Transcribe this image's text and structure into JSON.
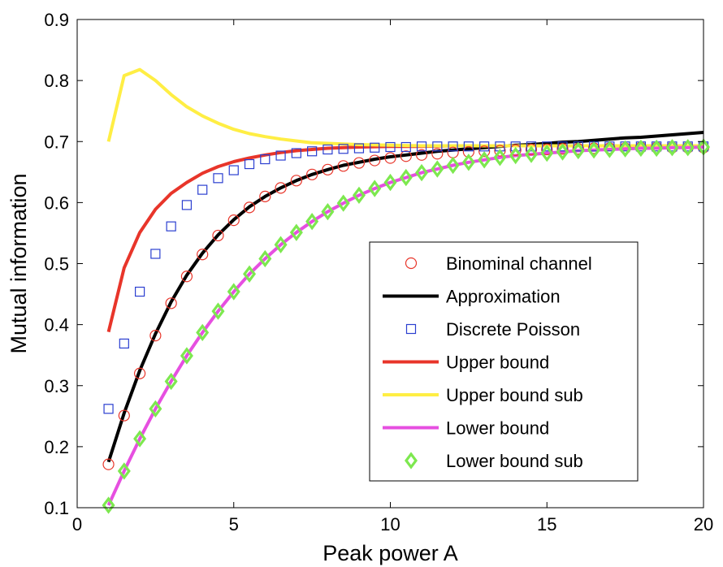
{
  "chart_data": {
    "type": "line",
    "xlabel": "Peak power A",
    "ylabel": "Mutual information",
    "xlim": [
      0,
      20
    ],
    "ylim": [
      0.1,
      0.9
    ],
    "xticks": [
      0,
      5,
      10,
      15,
      20
    ],
    "yticks": [
      0.1,
      0.2,
      0.3,
      0.4,
      0.5,
      0.6,
      0.7,
      0.8,
      0.9
    ],
    "grid": false,
    "legend_position": "bottom-right",
    "series": [
      {
        "name": "Binominal channel",
        "style": "marker",
        "marker": "circle",
        "color": "#e8352a",
        "x": [
          1,
          1.5,
          2,
          2.5,
          3,
          3.5,
          4,
          4.5,
          5,
          5.5,
          6,
          6.5,
          7,
          7.5,
          8,
          8.5,
          9,
          9.5,
          10,
          10.5,
          11,
          11.5,
          12,
          12.5,
          13,
          13.5,
          14,
          14.5,
          15,
          15.5,
          16,
          16.5,
          17,
          17.5,
          18,
          18.5,
          19,
          19.5,
          20
        ],
        "y": [
          0.171,
          0.251,
          0.32,
          0.382,
          0.435,
          0.479,
          0.515,
          0.546,
          0.571,
          0.592,
          0.61,
          0.624,
          0.636,
          0.646,
          0.654,
          0.66,
          0.665,
          0.669,
          0.673,
          0.676,
          0.678,
          0.68,
          0.682,
          0.683,
          0.684,
          0.685,
          0.686,
          0.687,
          0.687,
          0.688,
          0.688,
          0.689,
          0.689,
          0.689,
          0.69,
          0.69,
          0.69,
          0.69,
          0.69
        ]
      },
      {
        "name": "Approximation",
        "style": "line",
        "color": "#000000",
        "x": [
          1,
          1.5,
          2,
          2.5,
          3,
          3.5,
          4,
          4.5,
          5,
          5.5,
          6,
          6.5,
          7,
          7.5,
          8,
          8.5,
          9,
          9.5,
          10,
          10.5,
          11,
          11.5,
          12,
          12.5,
          13,
          13.5,
          14,
          14.5,
          15,
          15.5,
          16,
          16.5,
          17,
          17.5,
          18,
          18.5,
          19,
          19.5,
          20
        ],
        "y": [
          0.175,
          0.255,
          0.325,
          0.385,
          0.437,
          0.481,
          0.517,
          0.547,
          0.572,
          0.593,
          0.61,
          0.624,
          0.636,
          0.646,
          0.654,
          0.661,
          0.666,
          0.671,
          0.675,
          0.678,
          0.681,
          0.684,
          0.686,
          0.688,
          0.69,
          0.692,
          0.694,
          0.695,
          0.697,
          0.699,
          0.7,
          0.702,
          0.704,
          0.706,
          0.707,
          0.709,
          0.711,
          0.713,
          0.715
        ]
      },
      {
        "name": "Discrete Poisson",
        "style": "marker",
        "marker": "square",
        "color": "#2b3fd0",
        "x": [
          1,
          1.5,
          2,
          2.5,
          3,
          3.5,
          4,
          4.5,
          5,
          5.5,
          6,
          6.5,
          7,
          7.5,
          8,
          8.5,
          9,
          9.5,
          10,
          10.5,
          11,
          11.5,
          12,
          12.5,
          13,
          13.5,
          14,
          14.5,
          15,
          15.5,
          16,
          16.5,
          17,
          17.5,
          18,
          18.5,
          19,
          19.5,
          20
        ],
        "y": [
          0.262,
          0.369,
          0.454,
          0.516,
          0.561,
          0.596,
          0.621,
          0.64,
          0.653,
          0.663,
          0.671,
          0.677,
          0.681,
          0.684,
          0.687,
          0.688,
          0.689,
          0.69,
          0.691,
          0.691,
          0.692,
          0.692,
          0.692,
          0.692,
          0.692,
          0.692,
          0.692,
          0.692,
          0.692,
          0.692,
          0.692,
          0.692,
          0.692,
          0.692,
          0.692,
          0.692,
          0.692,
          0.692,
          0.692
        ]
      },
      {
        "name": "Upper bound",
        "style": "line",
        "color": "#e8352a",
        "x": [
          1,
          1.5,
          2,
          2.5,
          3,
          3.5,
          4,
          4.5,
          5,
          5.5,
          6,
          6.5,
          7,
          7.5,
          8,
          9,
          10,
          11,
          12,
          14,
          16,
          18,
          20
        ],
        "y": [
          0.388,
          0.493,
          0.551,
          0.589,
          0.615,
          0.633,
          0.648,
          0.659,
          0.667,
          0.673,
          0.678,
          0.682,
          0.685,
          0.687,
          0.689,
          0.691,
          0.692,
          0.692,
          0.693,
          0.693,
          0.693,
          0.693,
          0.693
        ]
      },
      {
        "name": "Upper bound sub",
        "style": "line",
        "color": "#ffee44",
        "x": [
          1,
          1.5,
          2,
          2.5,
          3,
          3.5,
          4,
          4.5,
          5,
          5.5,
          6,
          6.5,
          7,
          7.5,
          8,
          9,
          10,
          11,
          12,
          14,
          16,
          18,
          20
        ],
        "y": [
          0.7,
          0.808,
          0.818,
          0.8,
          0.777,
          0.757,
          0.742,
          0.73,
          0.72,
          0.713,
          0.708,
          0.704,
          0.701,
          0.698,
          0.697,
          0.695,
          0.694,
          0.693,
          0.693,
          0.693,
          0.693,
          0.693,
          0.693
        ]
      },
      {
        "name": "Lower bound",
        "style": "line",
        "color": "#e64fe0",
        "x": [
          1,
          1.5,
          2,
          2.5,
          3,
          3.5,
          4,
          4.5,
          5,
          5.5,
          6,
          6.5,
          7,
          7.5,
          8,
          8.5,
          9,
          9.5,
          10,
          10.5,
          11,
          11.5,
          12,
          12.5,
          13,
          13.5,
          14,
          14.5,
          15,
          15.5,
          16,
          16.5,
          17,
          17.5,
          18,
          18.5,
          19,
          19.5,
          20
        ],
        "y": [
          0.104,
          0.16,
          0.213,
          0.262,
          0.307,
          0.349,
          0.387,
          0.422,
          0.454,
          0.483,
          0.508,
          0.531,
          0.551,
          0.569,
          0.585,
          0.599,
          0.612,
          0.623,
          0.633,
          0.641,
          0.649,
          0.655,
          0.661,
          0.666,
          0.67,
          0.674,
          0.677,
          0.679,
          0.681,
          0.683,
          0.685,
          0.686,
          0.687,
          0.688,
          0.689,
          0.689,
          0.69,
          0.69,
          0.691
        ]
      },
      {
        "name": "Lower bound sub",
        "style": "marker",
        "marker": "diamond",
        "color": "#7de84f",
        "x": [
          1,
          1.5,
          2,
          2.5,
          3,
          3.5,
          4,
          4.5,
          5,
          5.5,
          6,
          6.5,
          7,
          7.5,
          8,
          8.5,
          9,
          9.5,
          10,
          10.5,
          11,
          11.5,
          12,
          12.5,
          13,
          13.5,
          14,
          14.5,
          15,
          15.5,
          16,
          16.5,
          17,
          17.5,
          18,
          18.5,
          19,
          19.5,
          20
        ],
        "y": [
          0.104,
          0.16,
          0.213,
          0.262,
          0.307,
          0.349,
          0.387,
          0.422,
          0.454,
          0.483,
          0.508,
          0.531,
          0.551,
          0.569,
          0.585,
          0.599,
          0.612,
          0.623,
          0.633,
          0.641,
          0.649,
          0.655,
          0.661,
          0.666,
          0.67,
          0.674,
          0.677,
          0.679,
          0.681,
          0.683,
          0.685,
          0.686,
          0.687,
          0.688,
          0.689,
          0.689,
          0.69,
          0.69,
          0.691
        ]
      }
    ]
  }
}
